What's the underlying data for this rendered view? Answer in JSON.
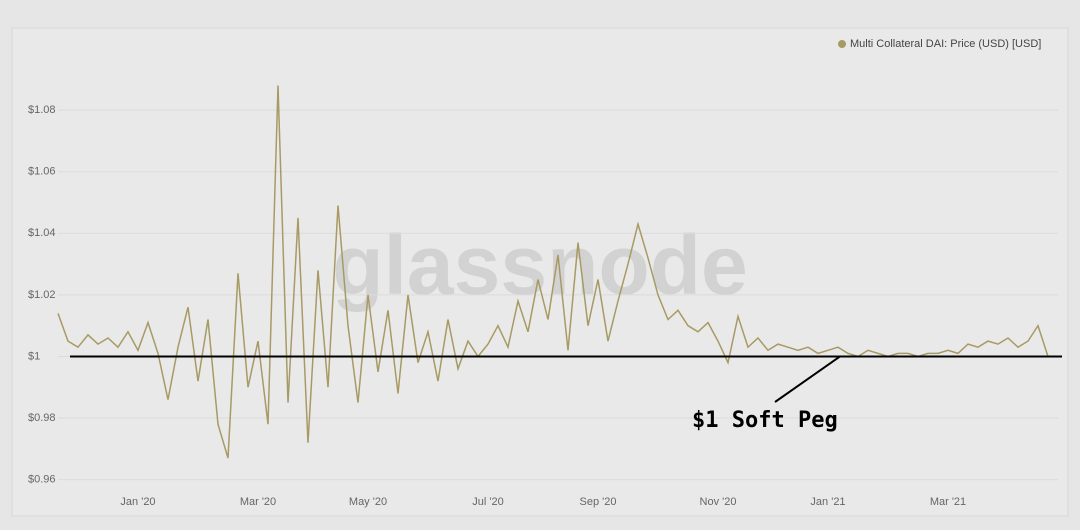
{
  "chart_data": {
    "type": "line",
    "legend": "Multi Collateral DAI: Price (USD) [USD]",
    "watermark": "glassnode",
    "annotation": "$1 Soft Peg",
    "peg_line": 1,
    "color": "#a89a64",
    "grid": true,
    "categories": [
      null,
      null,
      null,
      null,
      null,
      null,
      null,
      null,
      "Jan '20",
      null,
      null,
      null,
      null,
      null,
      null,
      null,
      null,
      null,
      null,
      null,
      "Mar '20",
      null,
      null,
      null,
      null,
      null,
      null,
      null,
      null,
      null,
      null,
      "May '20",
      null,
      null,
      null,
      null,
      null,
      null,
      null,
      null,
      null,
      null,
      null,
      "Jul '20",
      null,
      null,
      null,
      null,
      null,
      null,
      null,
      null,
      null,
      null,
      "Sep '20",
      null,
      null,
      null,
      null,
      null,
      null,
      null,
      null,
      null,
      null,
      null,
      "Nov '20",
      null,
      null,
      null,
      null,
      null,
      null,
      null,
      null,
      null,
      null,
      "Jan '21",
      null,
      null,
      null,
      null,
      null,
      null,
      null,
      null,
      null,
      null,
      null,
      "Mar '21",
      null,
      null,
      null,
      null,
      null,
      null,
      null,
      null,
      null,
      null
    ],
    "series": [
      {
        "name": "Multi Collateral DAI: Price (USD) [USD]",
        "color": "#a89a64",
        "values": [
          1.014,
          1.005,
          1.003,
          1.007,
          1.004,
          1.006,
          1.003,
          1.008,
          1.002,
          1.011,
          1.001,
          0.986,
          1.003,
          1.016,
          0.992,
          1.012,
          0.978,
          0.967,
          1.027,
          0.99,
          1.005,
          0.978,
          1.088,
          0.985,
          1.045,
          0.972,
          1.028,
          0.99,
          1.049,
          1.01,
          0.985,
          1.02,
          0.995,
          1.015,
          0.988,
          1.02,
          0.998,
          1.008,
          0.992,
          1.012,
          0.996,
          1.005,
          1.0,
          1.004,
          1.01,
          1.003,
          1.018,
          1.008,
          1.025,
          1.012,
          1.033,
          1.002,
          1.037,
          1.01,
          1.025,
          1.005,
          1.018,
          1.03,
          1.043,
          1.032,
          1.02,
          1.012,
          1.015,
          1.01,
          1.008,
          1.011,
          1.005,
          0.998,
          1.013,
          1.003,
          1.006,
          1.002,
          1.004,
          1.003,
          1.002,
          1.003,
          1.001,
          1.002,
          1.003,
          1.001,
          1.0,
          1.002,
          1.001,
          1.0,
          1.001,
          1.001,
          1.0,
          1.001,
          1.001,
          1.002,
          1.001,
          1.004,
          1.003,
          1.005,
          1.004,
          1.006,
          1.003,
          1.005,
          1.01,
          1.0
        ]
      }
    ],
    "ylim": [
      0.955,
      1.095
    ],
    "yticks": [
      {
        "value": 0.96,
        "label": "$0.96"
      },
      {
        "value": 0.98,
        "label": "$0.98"
      },
      {
        "value": 1,
        "label": "$1"
      },
      {
        "value": 1.02,
        "label": "$1.02"
      },
      {
        "value": 1.04,
        "label": "$1.04"
      },
      {
        "value": 1.06,
        "label": "$1.06"
      },
      {
        "value": 1.08,
        "label": "$1.08"
      }
    ]
  }
}
